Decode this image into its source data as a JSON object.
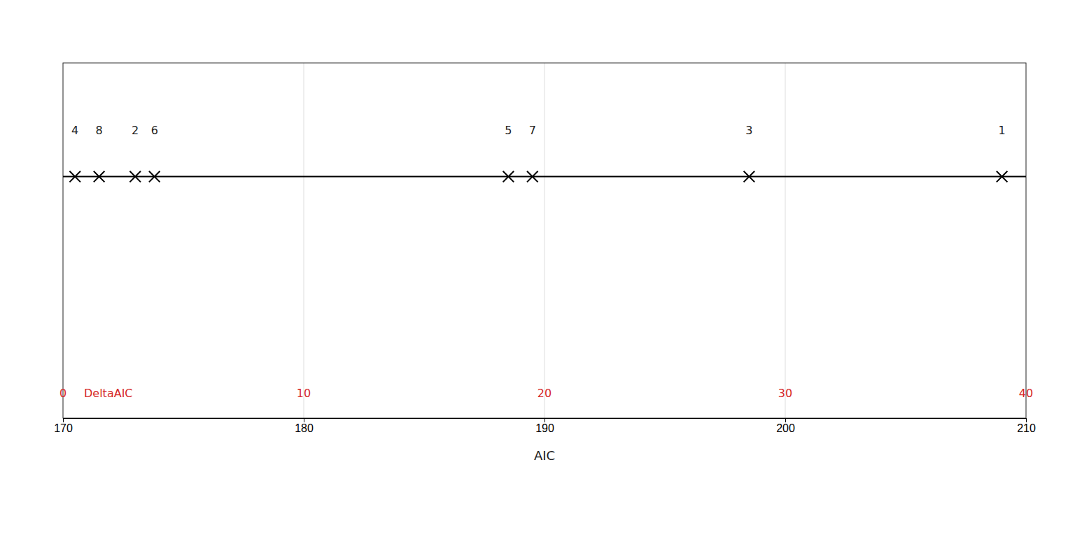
{
  "chart_data": {
    "type": "dot",
    "xlabel": "AIC",
    "categories": [
      "4",
      "8",
      "2",
      "6",
      "5",
      "7",
      "3",
      "1"
    ],
    "x": [
      170.5,
      171.5,
      173.0,
      173.8,
      188.5,
      189.5,
      198.5,
      209.0
    ],
    "xlim": [
      170,
      210
    ],
    "xticks": [
      170,
      180,
      190,
      200,
      210
    ],
    "x2label": "DeltaAIC",
    "x2lim": [
      0,
      40
    ],
    "x2ticks": [
      0,
      10,
      20,
      30,
      40
    ],
    "grid": true
  }
}
